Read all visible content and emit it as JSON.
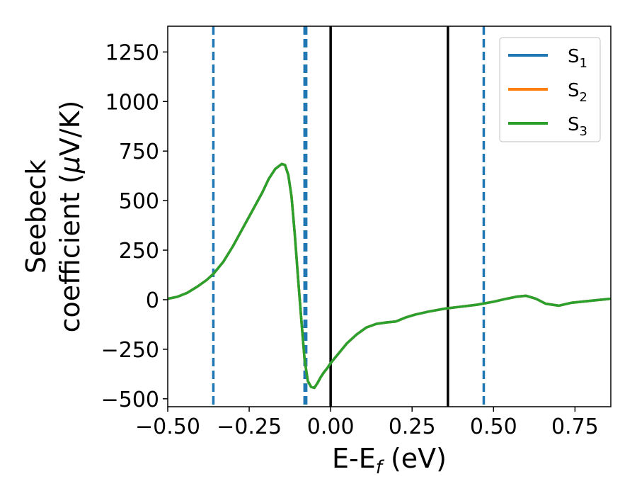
{
  "chart_data": {
    "type": "line",
    "xlabel_main": "E-E",
    "xlabel_sub": "f",
    "xlabel_unit": " (eV)",
    "ylabel_line1": "Seebeck",
    "ylabel_line2": "coefficient  (",
    "ylabel_mu": "μ",
    "ylabel_unit": "V/K)",
    "xlim": [
      -0.5,
      0.86
    ],
    "ylim": [
      -540,
      1380
    ],
    "xticks": [
      -0.5,
      -0.25,
      0.0,
      0.25,
      0.5,
      0.75
    ],
    "xtick_labels": [
      "−0.50",
      "−0.25",
      "0.00",
      "0.25",
      "0.50",
      "0.75"
    ],
    "yticks": [
      -500,
      -250,
      0,
      250,
      500,
      750,
      1000,
      1250
    ],
    "ytick_labels": [
      "−500",
      "−250",
      "0",
      "250",
      "500",
      "750",
      "1000",
      "1250"
    ],
    "grid": false,
    "legend_position": "top-right",
    "series": [
      {
        "name": "S",
        "sub": "1",
        "color": "#1f77b4"
      },
      {
        "name": "S",
        "sub": "2",
        "color": "#ff7f0e"
      },
      {
        "name": "S",
        "sub": "3",
        "color": "#2ca02c"
      }
    ],
    "x": [
      -0.5,
      -0.47,
      -0.44,
      -0.41,
      -0.38,
      -0.36,
      -0.33,
      -0.3,
      -0.27,
      -0.24,
      -0.21,
      -0.19,
      -0.17,
      -0.15,
      -0.14,
      -0.13,
      -0.12,
      -0.11,
      -0.1,
      -0.09,
      -0.08,
      -0.07,
      -0.06,
      -0.05,
      -0.04,
      -0.03,
      -0.02,
      -0.01,
      0.0,
      0.02,
      0.05,
      0.08,
      0.11,
      0.14,
      0.17,
      0.2,
      0.23,
      0.26,
      0.3,
      0.35,
      0.4,
      0.45,
      0.5,
      0.54,
      0.57,
      0.6,
      0.63,
      0.66,
      0.7,
      0.74,
      0.8,
      0.86
    ],
    "y": [
      5,
      15,
      35,
      65,
      100,
      130,
      190,
      270,
      360,
      450,
      540,
      610,
      660,
      685,
      680,
      630,
      520,
      330,
      110,
      -100,
      -300,
      -410,
      -440,
      -445,
      -420,
      -390,
      -365,
      -345,
      -320,
      -280,
      -220,
      -175,
      -140,
      -122,
      -115,
      -110,
      -90,
      -75,
      -60,
      -45,
      -35,
      -25,
      -10,
      5,
      15,
      20,
      5,
      -20,
      -30,
      -15,
      -5,
      5
    ],
    "vlines_dashed": [
      -0.36,
      -0.08,
      -0.075,
      0.47
    ],
    "vlines_solid": [
      0.0,
      0.36
    ],
    "dashed_color": "#1f77b4",
    "solid_color": "#000000"
  }
}
